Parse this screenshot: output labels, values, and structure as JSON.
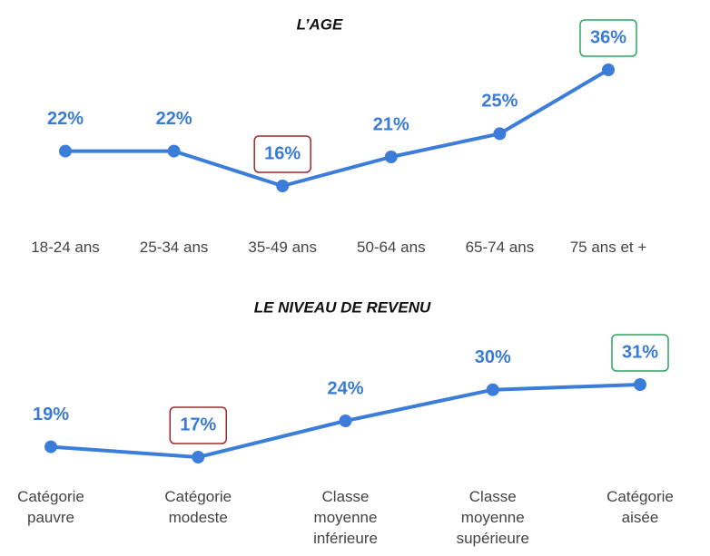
{
  "chart_data": [
    {
      "type": "line",
      "title": "L’AGE",
      "categories": [
        "18-24 ans",
        "25-34 ans",
        "35-49 ans",
        "50-64 ans",
        "65-74 ans",
        "75 ans et +"
      ],
      "values": [
        22,
        22,
        16,
        21,
        25,
        36
      ],
      "value_labels": [
        "22%",
        "22%",
        "16%",
        "21%",
        "25%",
        "36%"
      ],
      "color": "#3b7dd8",
      "highlight": {
        "min": "#a0282d",
        "max": "#2aa660"
      }
    },
    {
      "type": "line",
      "title": "LE NIVEAU DE REVENU",
      "categories": [
        "Catégorie pauvre",
        "Catégorie modeste",
        "Classe moyenne inférieure",
        "Classe moyenne supérieure",
        "Catégorie aisée"
      ],
      "values": [
        19,
        17,
        24,
        30,
        31
      ],
      "value_labels": [
        "19%",
        "17%",
        "24%",
        "30%",
        "31%"
      ],
      "color": "#3b7dd8",
      "highlight": {
        "min": "#a0282d",
        "max": "#2aa660"
      }
    }
  ]
}
